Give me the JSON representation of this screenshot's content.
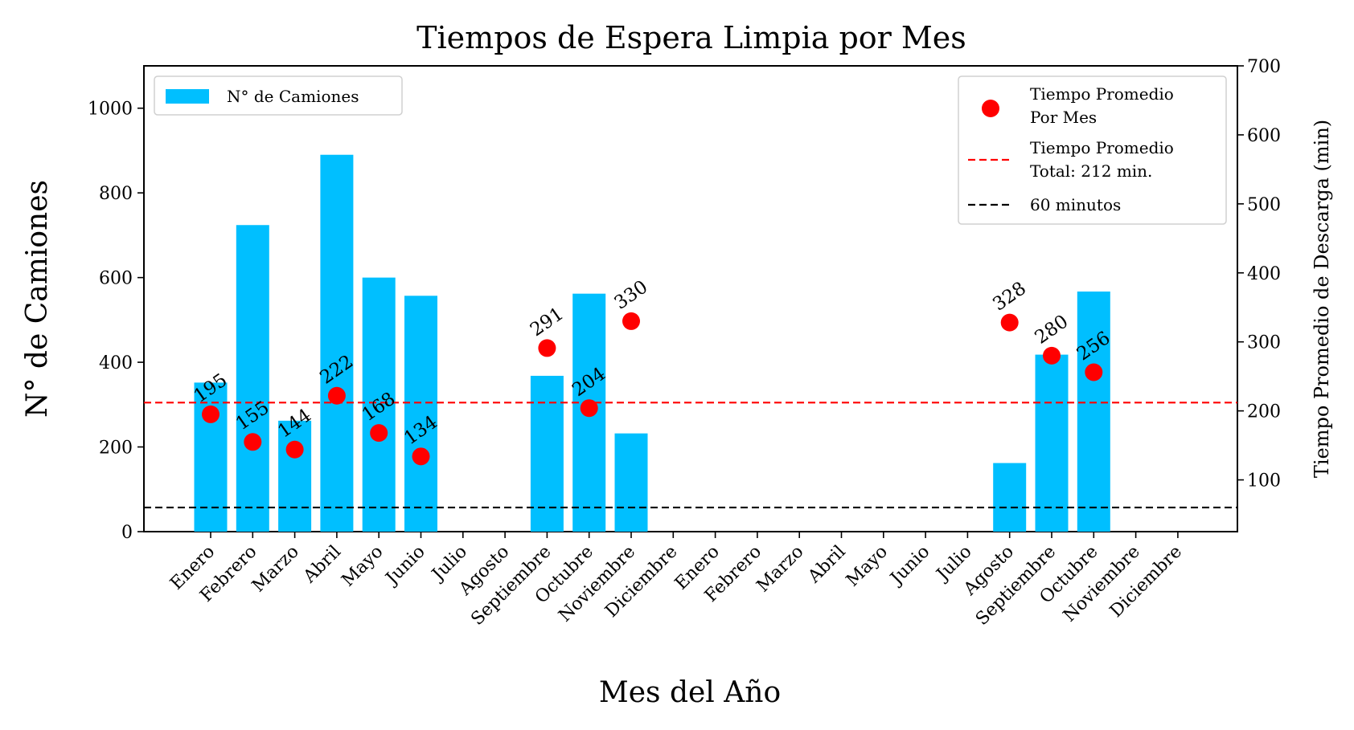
{
  "chart_data": {
    "type": "bar",
    "title": "Tiempos de Espera Limpia por Mes",
    "xlabel": "Mes del Año",
    "ylabel": "N° de Camiones",
    "y2label": "Tiempo Promedio de Descarga (min)",
    "categories": [
      "Enero",
      "Febrero",
      "Marzo",
      "Abril",
      "Mayo",
      "Junio",
      "Julio",
      "Agosto",
      "Septiembre",
      "Octubre",
      "Noviembre",
      "Diciembre",
      "Enero",
      "Febrero",
      "Marzo",
      "Abril",
      "Mayo",
      "Junio",
      "Julio",
      "Agosto",
      "Septiembre",
      "Octubre",
      "Noviembre",
      "Diciembre"
    ],
    "ylim": [
      0,
      1100
    ],
    "yticks": [
      0,
      200,
      400,
      600,
      800,
      1000
    ],
    "y2lim": [
      25,
      700
    ],
    "y2ticks": [
      100,
      200,
      300,
      400,
      500,
      600,
      700
    ],
    "grid": false,
    "series": [
      {
        "name": "N° de Camiones",
        "type": "bar",
        "axis": "left",
        "color": "#00BFFF",
        "values": [
          352,
          724,
          262,
          890,
          600,
          557,
          null,
          null,
          368,
          562,
          232,
          null,
          null,
          null,
          null,
          null,
          null,
          null,
          null,
          162,
          418,
          567,
          null,
          null
        ]
      },
      {
        "name": "Tiempo Promedio Por Mes",
        "type": "scatter",
        "axis": "right",
        "color": "#FF0000",
        "values": [
          195,
          155,
          144,
          222,
          168,
          134,
          null,
          null,
          291,
          204,
          330,
          null,
          null,
          null,
          null,
          null,
          null,
          null,
          null,
          328,
          280,
          256,
          null,
          null
        ],
        "labels": [
          "195",
          "155",
          "144",
          "222",
          "168",
          "134",
          null,
          null,
          "291",
          "204",
          "330",
          null,
          null,
          null,
          null,
          null,
          null,
          null,
          null,
          "328",
          "280",
          "256",
          null,
          null
        ]
      }
    ],
    "reference_lines": [
      {
        "name": "Tiempo Promedio Total: 212 min.",
        "axis": "right",
        "value": 212,
        "color": "#FF0000",
        "style": "dashed"
      },
      {
        "name": "60 minutos",
        "axis": "right",
        "value": 60,
        "color": "#000000",
        "style": "dashed"
      }
    ],
    "legends": [
      {
        "placement": "top-left",
        "entries": [
          "N° de Camiones"
        ]
      },
      {
        "placement": "top-right",
        "entries": [
          "Tiempo Promedio Por Mes",
          "Tiempo Promedio Total: 212 min.",
          "60 minutos"
        ]
      }
    ]
  },
  "legend_text": {
    "bars": "N° de Camiones",
    "points_line1": "Tiempo Promedio",
    "points_line2": "Por Mes",
    "avg_line1": "Tiempo Promedio",
    "avg_line2": "Total: 212 min.",
    "sixty": "60 minutos"
  }
}
